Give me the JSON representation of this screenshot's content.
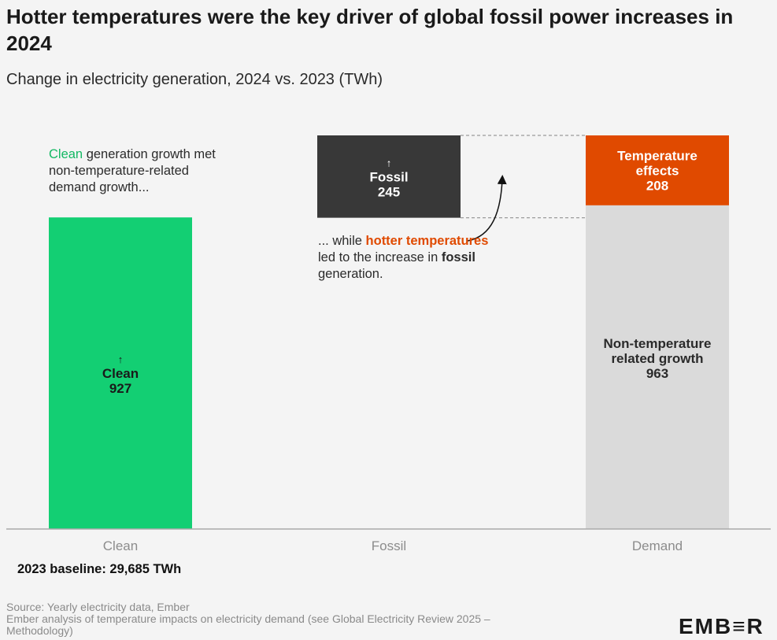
{
  "title": "Hotter temperatures were the key driver of global fossil power increases in 2024",
  "subtitle": "Change in electricity generation, 2024 vs. 2023 (TWh)",
  "annotations": {
    "clean_note": {
      "highlight": "Clean",
      "rest": " generation growth met non-temperature-related demand growth..."
    },
    "fossil_note": {
      "part1": "... while ",
      "highlight": "hotter temperatures",
      "part2": " led to the increase in ",
      "bold": "fossil",
      "part3": " generation."
    }
  },
  "baseline": "2023 baseline: 29,685 TWh",
  "source_lines": [
    "Source: Yearly electricity data, Ember",
    "Ember analysis of temperature impacts on electricity demand (see Global Electricity Review 2025 –",
    "Methodology)"
  ],
  "logo": "EMB≡R",
  "colors": {
    "clean": "#13cf73",
    "fossil": "#383838",
    "temperature": "#e04a00",
    "demand_base": "#dadada",
    "clean_text": "#13b863",
    "hot_text": "#e04a00"
  },
  "chart_data": {
    "type": "bar",
    "categories": [
      "Clean",
      "Fossil",
      "Demand"
    ],
    "ylim": [
      0,
      1171
    ],
    "series": [
      {
        "name": "Clean",
        "category": "Clean",
        "base": 0,
        "value": 927,
        "label_lines": [
          "↑",
          "Clean",
          "927"
        ]
      },
      {
        "name": "Fossil",
        "category": "Fossil",
        "base": 926,
        "value": 245,
        "label_lines": [
          "↑",
          "Fossil",
          "245"
        ]
      },
      {
        "name": "Non-temperature related growth",
        "category": "Demand",
        "base": 0,
        "value": 963,
        "label_lines": [
          "Non-temperature",
          "related growth",
          "963"
        ]
      },
      {
        "name": "Temperature effects",
        "category": "Demand",
        "base": 963,
        "value": 208,
        "label_lines": [
          "Temperature",
          "effects",
          "208"
        ]
      }
    ]
  }
}
